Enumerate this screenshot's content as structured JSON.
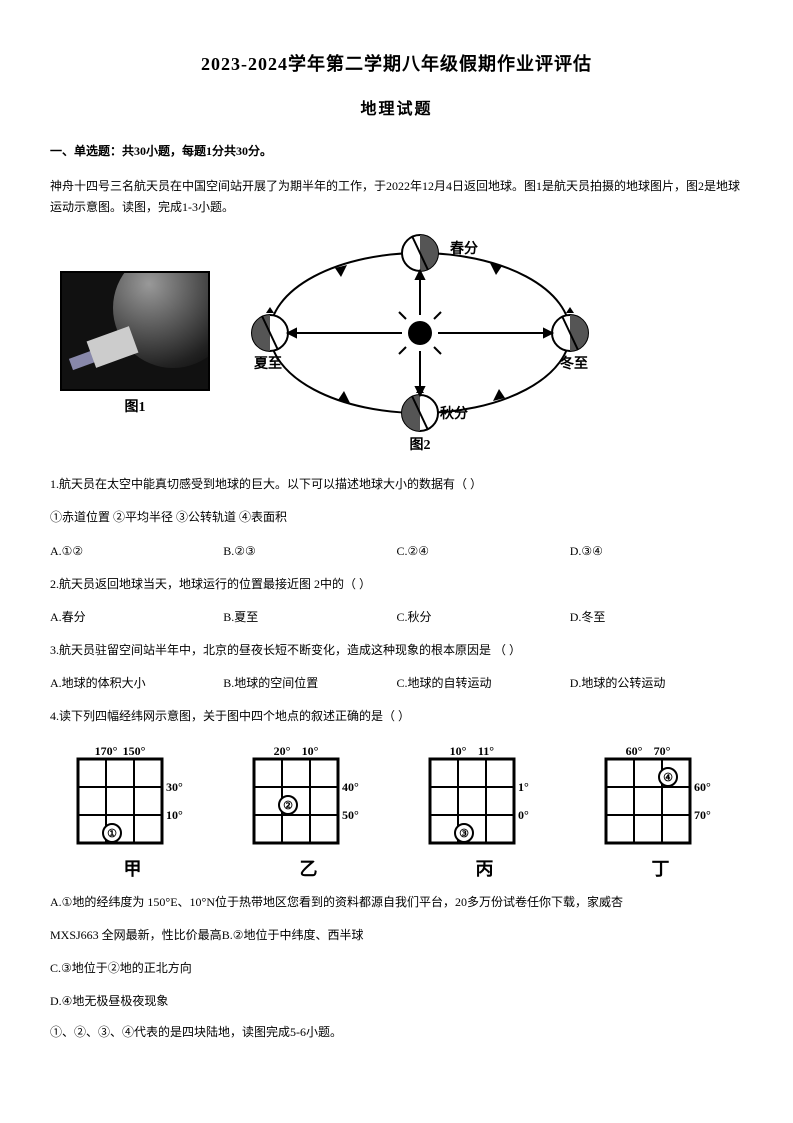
{
  "title_main": "2023-2024学年第二学期八年级假期作业评评估",
  "title_sub": "地理试题",
  "section1": "一、单选题：共30小题，每题1分共30分。",
  "intro": "神舟十四号三名航天员在中国空间站开展了为期半年的工作，于2022年12月4日返回地球。图1是航天员拍摄的地球图片，图2是地球运动示意图。读图，完成1-3小题。",
  "fig1": {
    "label": "图1"
  },
  "fig2": {
    "label": "图2",
    "labels": {
      "top": "春分",
      "right": "冬至",
      "bottom": "秋分",
      "left": "夏至"
    },
    "colors": {
      "stroke": "#000000",
      "fill_dark": "#555555",
      "fill_light": "#ffffff",
      "sun": "#000000"
    }
  },
  "q1": {
    "text": "1.航天员在太空中能真切感受到地球的巨大。以下可以描述地球大小的数据有（  ）",
    "sub": "①赤道位置  ②平均半径  ③公转轨道              ④表面积",
    "A": "A.①②",
    "B": "B.②③",
    "C": "C.②④",
    "D": "D.③④"
  },
  "q2": {
    "text": "2.航天员返回地球当天，地球运行的位置最接近图 2中的（  ）",
    "A": "A.春分",
    "B": "B.夏至",
    "C": "C.秋分",
    "D": "D.冬至"
  },
  "q3": {
    "text": "3.航天员驻留空间站半年中，北京的昼夜长短不断变化，造成这种现象的根本原因是 （  ）",
    "A": "A.地球的体积大小",
    "B": "B.地球的空间位置",
    "C": "C.地球的自转运动",
    "D": "D.地球的公转运动"
  },
  "q4": {
    "text": "4.读下列四幅经纬网示意图，关于图中四个地点的叙述正确的是（  ）",
    "grids": {
      "jia": {
        "label": "甲",
        "top": [
          "170°",
          "150°"
        ],
        "right": [
          "30°",
          "10°"
        ],
        "point": "①",
        "px": 1,
        "py": 2
      },
      "yi": {
        "label": "乙",
        "top": [
          "20°",
          "10°"
        ],
        "right": [
          "40°",
          "50°"
        ],
        "point": "②",
        "px": 1,
        "py": 1
      },
      "bing": {
        "label": "丙",
        "top": [
          "10°",
          "11°"
        ],
        "right": [
          "1°",
          "0°"
        ],
        "point": "③",
        "px": 1,
        "py": 2
      },
      "ding": {
        "label": "丁",
        "top": [
          "60°",
          "70°"
        ],
        "right": [
          "60°",
          "70°"
        ],
        "point": "④",
        "px": 2,
        "py": 0
      }
    },
    "optA_pre": "A.①地的经纬度为       150°E、10°N位于热带地区",
    "optA_note": "您看到的资料都源自我们平台，20多万份试卷任你下载，家威杏",
    "optA_note2": "MXSJ663 全网最新，性比价最高",
    "optB": "B.②地位于中纬度、西半球",
    "optC": "C.③地位于②地的正北方向",
    "optD": "D.④地无极昼极夜现象"
  },
  "tail": "①、②、③、④代表的是四块陆地，读图完成5-6小题。",
  "grid_style": {
    "size": 110,
    "cell": 30,
    "stroke": "#000000",
    "stroke_width": 2,
    "font_size": 12,
    "label_font_size": 18,
    "point_r": 9
  }
}
